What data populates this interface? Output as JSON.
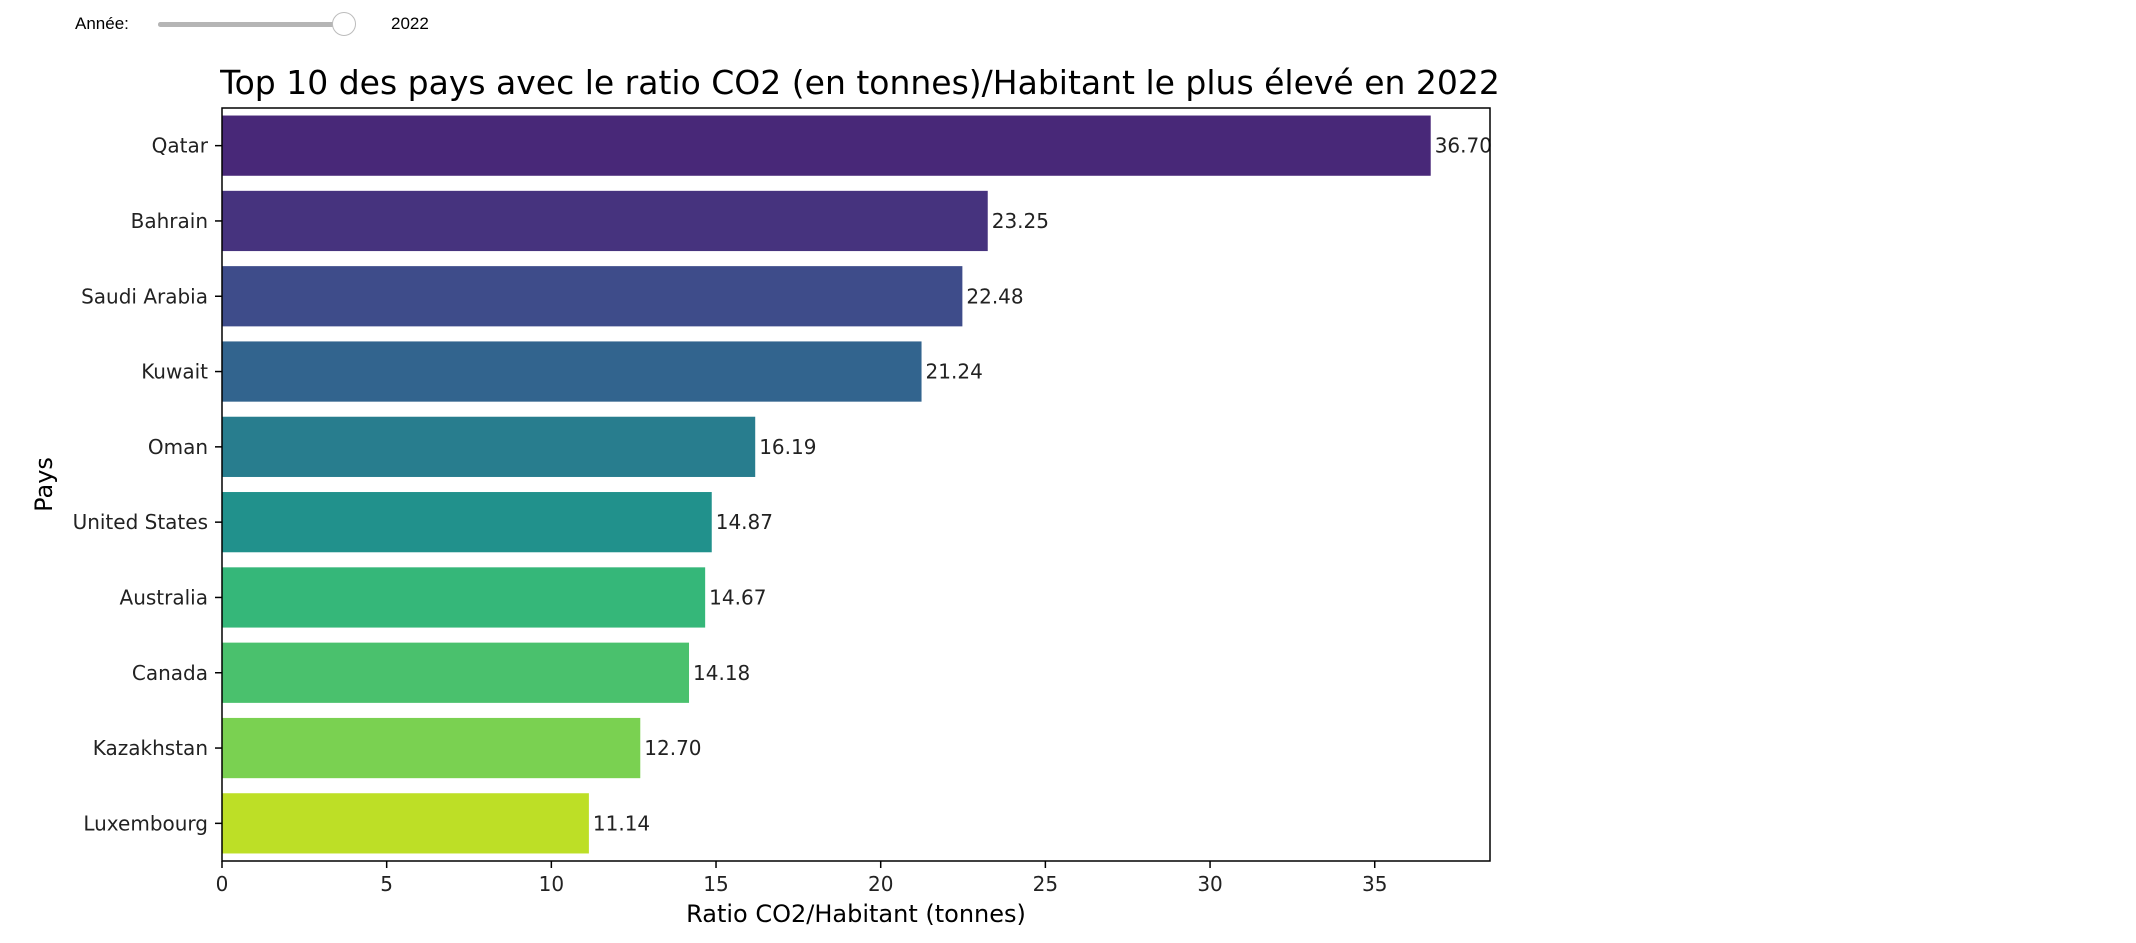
{
  "widget": {
    "label": "Année:",
    "value": "2022",
    "slider_fraction": 1.0
  },
  "chart_data": {
    "type": "bar",
    "orientation": "horizontal",
    "title": "Top 10 des pays avec le ratio CO2 (en tonnes)/Habitant le plus élevé en 2022",
    "xlabel": "Ratio CO2/Habitant (tonnes)",
    "ylabel": "Pays",
    "categories": [
      "Qatar",
      "Bahrain",
      "Saudi Arabia",
      "Kuwait",
      "Oman",
      "United States",
      "Australia",
      "Canada",
      "Kazakhstan",
      "Luxembourg"
    ],
    "values": [
      36.7,
      23.25,
      22.48,
      21.24,
      16.19,
      14.87,
      14.67,
      14.18,
      12.7,
      11.14
    ],
    "value_labels": [
      "36.70",
      "23.25",
      "22.48",
      "21.24",
      "16.19",
      "14.87",
      "14.67",
      "14.18",
      "12.70",
      "11.14"
    ],
    "colors": [
      "#482878",
      "#46337e",
      "#3e4c8a",
      "#32648e",
      "#287d8e",
      "#21918c",
      "#35b779",
      "#4ac16d",
      "#7ad151",
      "#bddf26"
    ],
    "xticks": [
      0,
      5,
      10,
      15,
      20,
      25,
      30,
      35
    ],
    "xlim": [
      0,
      38.5
    ],
    "grid": false,
    "legend": "none"
  }
}
